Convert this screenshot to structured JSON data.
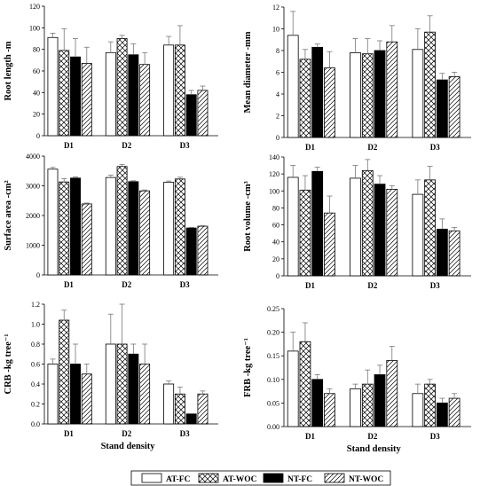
{
  "legend": [
    "AT-FC",
    "AT-WOC",
    "NT-FC",
    "NT-WOC"
  ],
  "chart_data": [
    {
      "type": "bar",
      "ylabel": "Root length -m",
      "xlabel": "",
      "ylim": [
        0,
        120
      ],
      "yticks": [
        0,
        20,
        40,
        60,
        80,
        100,
        120
      ],
      "categories": [
        "D1",
        "D2",
        "D3"
      ],
      "series": [
        {
          "name": "AT-FC",
          "values": [
            91,
            77,
            84
          ],
          "errors": [
            4,
            10,
            8
          ]
        },
        {
          "name": "AT-WOC",
          "values": [
            79,
            90,
            84
          ],
          "errors": [
            20,
            3,
            18
          ]
        },
        {
          "name": "NT-FC",
          "values": [
            73,
            75,
            38
          ],
          "errors": [
            17,
            10,
            4
          ]
        },
        {
          "name": "NT-WOC",
          "values": [
            67,
            66,
            42
          ],
          "errors": [
            15,
            11,
            4
          ]
        }
      ]
    },
    {
      "type": "bar",
      "ylabel": "Mean diameter -mm",
      "xlabel": "",
      "ylim": [
        0,
        12
      ],
      "yticks": [
        0,
        2,
        4,
        6,
        8,
        10,
        12
      ],
      "categories": [
        "D1",
        "D2",
        "D3"
      ],
      "series": [
        {
          "name": "AT-FC",
          "values": [
            9.4,
            7.8,
            8.1
          ],
          "errors": [
            2.2,
            1.3,
            1.9
          ]
        },
        {
          "name": "AT-WOC",
          "values": [
            7.2,
            7.7,
            9.7
          ],
          "errors": [
            0.9,
            1.4,
            1.5
          ]
        },
        {
          "name": "NT-FC",
          "values": [
            8.3,
            8.0,
            5.3
          ],
          "errors": [
            0.3,
            0.9,
            0.6
          ]
        },
        {
          "name": "NT-WOC",
          "values": [
            6.4,
            8.8,
            5.6
          ],
          "errors": [
            1.5,
            1.5,
            0.4
          ]
        }
      ]
    },
    {
      "type": "bar",
      "ylabel": "Surface area -cm²",
      "xlabel": "",
      "ylim": [
        0,
        4000
      ],
      "yticks": [
        0,
        1000,
        2000,
        3000,
        4000
      ],
      "categories": [
        "D1",
        "D2",
        "D3"
      ],
      "series": [
        {
          "name": "AT-FC",
          "values": [
            3560,
            3280,
            3120
          ],
          "errors": [
            60,
            80,
            40
          ]
        },
        {
          "name": "AT-WOC",
          "values": [
            3130,
            3650,
            3230
          ],
          "errors": [
            110,
            70,
            60
          ]
        },
        {
          "name": "NT-FC",
          "values": [
            3260,
            3140,
            1580
          ],
          "errors": [
            40,
            30,
            20
          ]
        },
        {
          "name": "NT-WOC",
          "values": [
            2390,
            2830,
            1640
          ],
          "errors": [
            30,
            30,
            20
          ]
        }
      ]
    },
    {
      "type": "bar",
      "ylabel": "Root volume -cm³",
      "xlabel": "",
      "ylim": [
        0,
        140
      ],
      "yticks": [
        0,
        20,
        40,
        60,
        80,
        100,
        120,
        140
      ],
      "categories": [
        "D1",
        "D2",
        "D3"
      ],
      "series": [
        {
          "name": "AT-FC",
          "values": [
            116,
            115,
            96
          ],
          "errors": [
            14,
            15,
            17
          ]
        },
        {
          "name": "AT-WOC",
          "values": [
            101,
            124,
            113
          ],
          "errors": [
            17,
            13,
            16
          ]
        },
        {
          "name": "NT-FC",
          "values": [
            123,
            108,
            55
          ],
          "errors": [
            5,
            10,
            12
          ]
        },
        {
          "name": "NT-WOC",
          "values": [
            74,
            102,
            53
          ],
          "errors": [
            20,
            4,
            4
          ]
        }
      ]
    },
    {
      "type": "bar",
      "ylabel": "CRB -kg tree⁻¹",
      "xlabel": "Stand density",
      "ylim": [
        0,
        1.2
      ],
      "yticks": [
        0,
        0.2,
        0.4,
        0.6,
        0.8,
        1.0,
        1.2
      ],
      "categories": [
        "D1",
        "D2",
        "D3"
      ],
      "series": [
        {
          "name": "AT-FC",
          "values": [
            0.6,
            0.8,
            0.4
          ],
          "errors": [
            0.05,
            0.3,
            0.03
          ]
        },
        {
          "name": "AT-WOC",
          "values": [
            1.04,
            0.8,
            0.3
          ],
          "errors": [
            0.1,
            0.4,
            0.07
          ]
        },
        {
          "name": "NT-FC",
          "values": [
            0.6,
            0.7,
            0.1
          ],
          "errors": [
            0.2,
            0.1,
            0.0
          ]
        },
        {
          "name": "NT-WOC",
          "values": [
            0.5,
            0.6,
            0.3
          ],
          "errors": [
            0.1,
            0.2,
            0.03
          ]
        }
      ]
    },
    {
      "type": "bar",
      "ylabel": "FRB -kg tree⁻¹",
      "xlabel": "Stand density",
      "ylim": [
        0,
        0.25
      ],
      "yticks": [
        0,
        0.05,
        0.1,
        0.15,
        0.2,
        0.25
      ],
      "categories": [
        "D1",
        "D2",
        "D3"
      ],
      "series": [
        {
          "name": "AT-FC",
          "values": [
            0.16,
            0.08,
            0.07
          ],
          "errors": [
            0.04,
            0.01,
            0.02
          ]
        },
        {
          "name": "AT-WOC",
          "values": [
            0.18,
            0.09,
            0.09
          ],
          "errors": [
            0.04,
            0.03,
            0.01
          ]
        },
        {
          "name": "NT-FC",
          "values": [
            0.1,
            0.11,
            0.05
          ],
          "errors": [
            0.01,
            0.02,
            0.01
          ]
        },
        {
          "name": "NT-WOC",
          "values": [
            0.07,
            0.14,
            0.06
          ],
          "errors": [
            0.01,
            0.03,
            0.01
          ]
        }
      ]
    }
  ]
}
